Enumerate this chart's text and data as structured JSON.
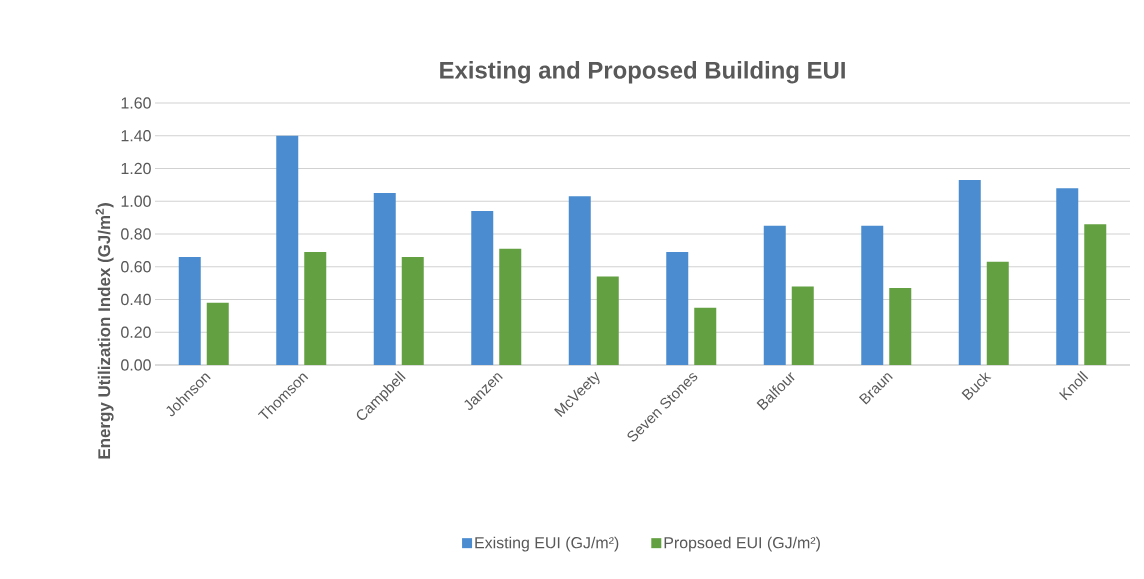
{
  "chart_data": {
    "type": "bar",
    "title": "Existing and Proposed Building EUI",
    "ylabel": "Energy Utilization Index (GJ/m$^{2}$)",
    "categories": [
      "Johnson",
      "Thomson",
      "Campbell",
      "Janzen",
      "McVeety",
      "Seven Stones",
      "Balfour",
      "Braun",
      "Buck",
      "Knoll"
    ],
    "series": [
      {
        "name": "Existing EUI (GJ/m²)",
        "color": "#4a8ccf",
        "values": [
          0.66,
          1.4,
          1.05,
          0.94,
          1.03,
          0.69,
          0.85,
          0.85,
          1.13,
          1.08
        ]
      },
      {
        "name": "Propsoed EUI (GJ/m²)",
        "color": "#63a042",
        "values": [
          0.38,
          0.69,
          0.66,
          0.71,
          0.54,
          0.35,
          0.48,
          0.47,
          0.63,
          0.86
        ]
      }
    ],
    "ylim": [
      0,
      1.6
    ],
    "yticks": [
      {
        "value": 0,
        "label": "0.00"
      },
      {
        "value": 0.2,
        "label": "0.20"
      },
      {
        "value": 0.4,
        "label": "0.40"
      },
      {
        "value": 0.6,
        "label": "0.60"
      },
      {
        "value": 0.8,
        "label": "0.80"
      },
      {
        "value": 1.0,
        "label": "1.00"
      },
      {
        "value": 1.2,
        "label": "1.20"
      },
      {
        "value": 1.4,
        "label": "1.40"
      },
      {
        "value": 1.6,
        "label": "1.60"
      }
    ],
    "grid": "y",
    "legend": "bottom"
  }
}
